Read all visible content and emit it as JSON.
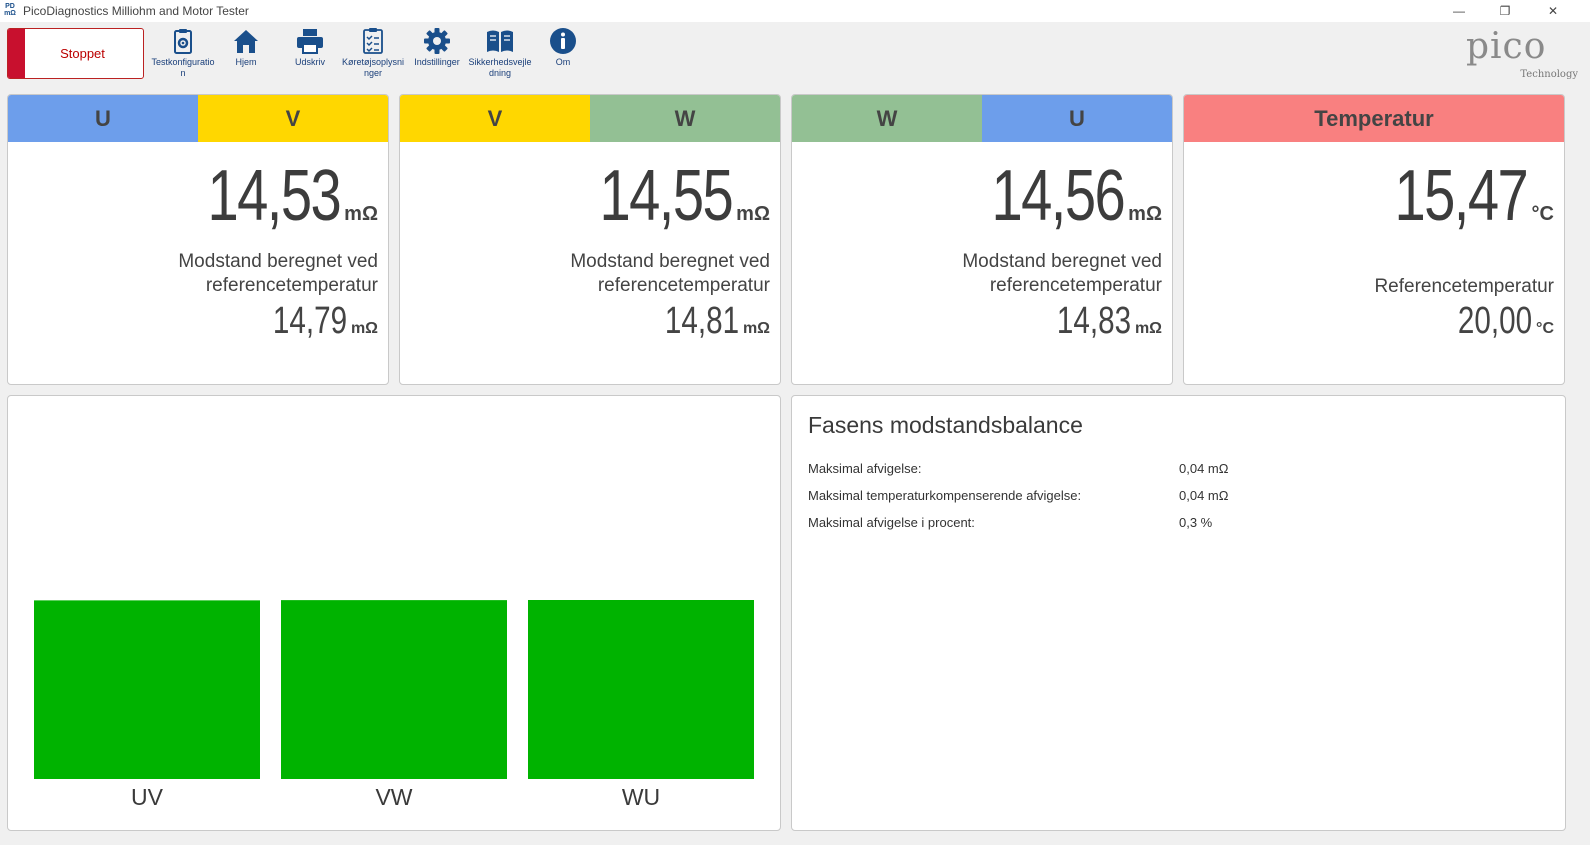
{
  "window": {
    "title": "PicoDiagnostics Milliohm and Motor Tester",
    "app_icon_text": "PD mΩ",
    "minimize_glyph": "—",
    "restore_glyph": "❐",
    "close_glyph": "✕"
  },
  "toolbar": {
    "stop_label": "Stoppet",
    "items": [
      {
        "label": "Testkonfiguration",
        "icon": "clipboard-gear-icon"
      },
      {
        "label": "Hjem",
        "icon": "home-icon"
      },
      {
        "label": "Udskriv",
        "icon": "printer-icon"
      },
      {
        "label": "Køretøjsoplysninger",
        "icon": "checklist-icon"
      },
      {
        "label": "Indstillinger",
        "icon": "gear-icon"
      },
      {
        "label": "Sikkerhedsvejledning",
        "icon": "book-icon"
      },
      {
        "label": "Om",
        "icon": "info-icon"
      }
    ],
    "logo_word": "pico",
    "logo_sub": "Technology"
  },
  "colors": {
    "U": "#6d9eeb",
    "V": "#ffd700",
    "W": "#93c094",
    "temperature": "#f98080",
    "bar": "#00b300",
    "icon": "#1a4f8b",
    "stop": "#c8102e"
  },
  "cards": [
    {
      "left": "U",
      "right": "V",
      "value": "14,53",
      "unit": "mΩ",
      "desc_line1": "Modstand beregnet ved",
      "desc_line2": "referencetemperatur",
      "ref_value": "14,79",
      "ref_unit": "mΩ"
    },
    {
      "left": "V",
      "right": "W",
      "value": "14,55",
      "unit": "mΩ",
      "desc_line1": "Modstand beregnet ved",
      "desc_line2": "referencetemperatur",
      "ref_value": "14,81",
      "ref_unit": "mΩ"
    },
    {
      "left": "W",
      "right": "U",
      "value": "14,56",
      "unit": "mΩ",
      "desc_line1": "Modstand beregnet ved",
      "desc_line2": "referencetemperatur",
      "ref_value": "14,83",
      "ref_unit": "mΩ"
    }
  ],
  "temperature": {
    "title": "Temperatur",
    "value": "15,47",
    "unit": "°C",
    "ref_label": "Referencetemperatur",
    "ref_value": "20,00",
    "ref_unit": "°C"
  },
  "balance": {
    "title": "Fasens modstandsbalance",
    "rows": [
      {
        "label": "Maksimal afvigelse:",
        "value": "0,04 mΩ"
      },
      {
        "label": "Maksimal temperaturkompenserende afvigelse:",
        "value": "0,04 mΩ"
      },
      {
        "label": "Maksimal afvigelse i procent:",
        "value": "0,3 %"
      }
    ]
  },
  "chart_data": {
    "type": "bar",
    "categories": [
      "UV",
      "VW",
      "WU"
    ],
    "values": [
      14.53,
      14.55,
      14.56
    ],
    "ylim": [
      0,
      14.56
    ],
    "title": "",
    "xlabel": "",
    "ylabel": "",
    "grid": false,
    "color": "#00b300"
  }
}
